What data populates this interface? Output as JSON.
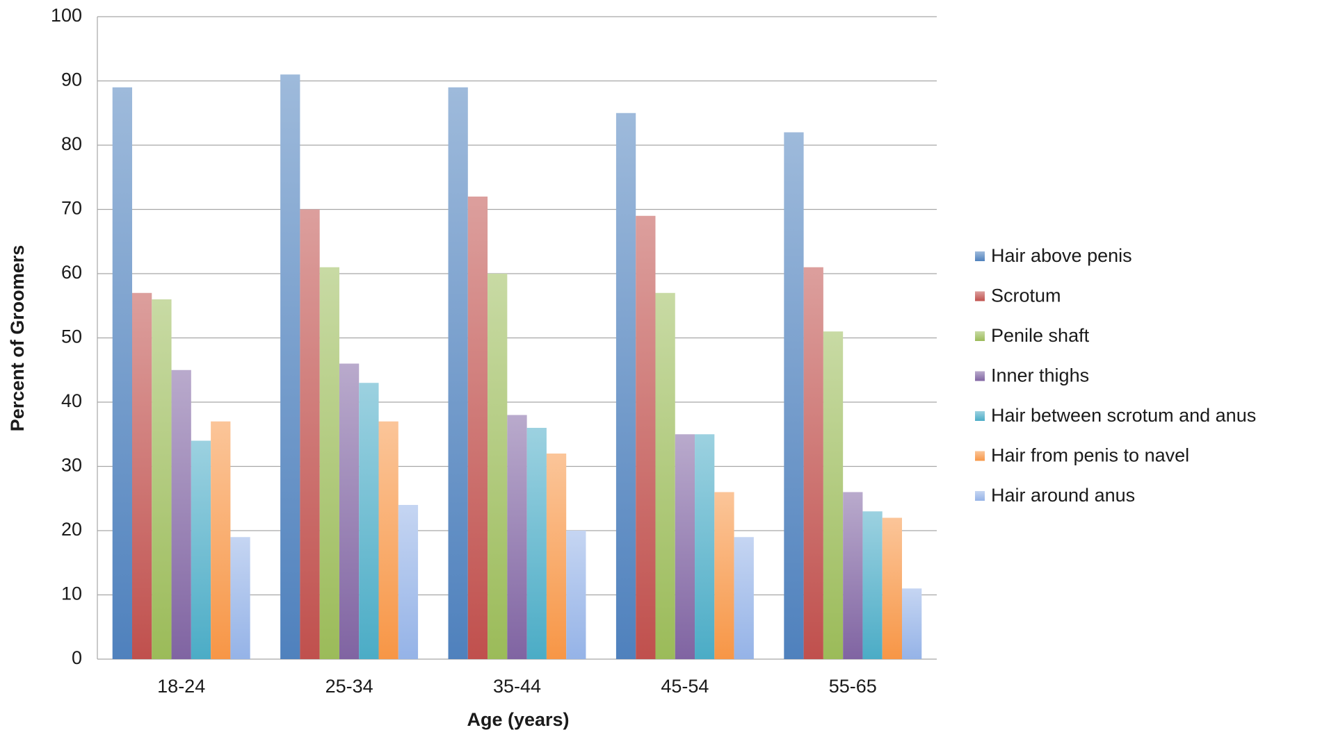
{
  "chart_data": {
    "type": "bar",
    "x_label": "Age (years)",
    "y_label": "Percent of Groomers",
    "categories": [
      "18-24",
      "25-34",
      "35-44",
      "45-54",
      "55-65"
    ],
    "series": [
      {
        "name": "Hair above penis",
        "color": "#4f81bd",
        "values": [
          89,
          91,
          89,
          85,
          82
        ]
      },
      {
        "name": "Scrotum",
        "color": "#c0504d",
        "values": [
          57,
          70,
          72,
          69,
          61
        ]
      },
      {
        "name": "Penile shaft",
        "color": "#9bbb59",
        "values": [
          56,
          61,
          60,
          57,
          51
        ]
      },
      {
        "name": "Inner thighs",
        "color": "#8064a2",
        "values": [
          45,
          46,
          38,
          35,
          26
        ]
      },
      {
        "name": "Hair between scrotum and anus",
        "color": "#4bacc6",
        "values": [
          34,
          43,
          36,
          35,
          23
        ]
      },
      {
        "name": "Hair from penis to navel",
        "color": "#f79646",
        "values": [
          37,
          37,
          32,
          26,
          22
        ]
      },
      {
        "name": "Hair around anus",
        "color": "#95b3e7",
        "values": [
          19,
          24,
          20,
          19,
          11
        ]
      }
    ],
    "ylim": [
      0,
      100
    ],
    "yticks": [
      0,
      10,
      20,
      30,
      40,
      50,
      60,
      70,
      80,
      90,
      100
    ],
    "grid": true,
    "legend": "right"
  }
}
